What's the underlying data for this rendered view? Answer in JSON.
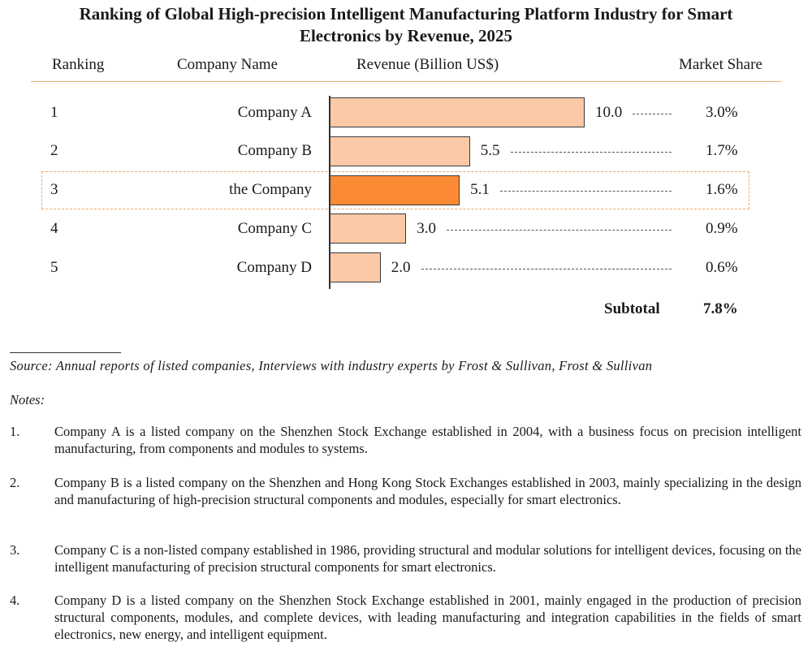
{
  "title_line1": "Ranking of Global High-precision Intelligent Manufacturing Platform Industry for Smart",
  "title_line2": "Electronics by Revenue, 2025",
  "headers": {
    "ranking": "Ranking",
    "company": "Company Name",
    "revenue": "Revenue (Billion US$)",
    "share": "Market Share"
  },
  "chart_data": {
    "type": "bar",
    "orientation": "horizontal",
    "title": "Ranking of Global High-precision Intelligent Manufacturing Platform Industry for Smart Electronics by Revenue, 2025",
    "categories": [
      "Company A",
      "Company B",
      "the Company",
      "Company C",
      "Company D"
    ],
    "ranks": [
      "1",
      "2",
      "3",
      "4",
      "5"
    ],
    "values": [
      10.0,
      5.5,
      5.1,
      3.0,
      2.0
    ],
    "value_labels": [
      "10.0",
      "5.5",
      "5.1",
      "3.0",
      "2.0"
    ],
    "market_share": [
      "3.0%",
      "1.7%",
      "1.6%",
      "0.9%",
      "0.6%"
    ],
    "highlighted_index": 2,
    "xlabel": "Revenue (Billion US$)",
    "xlim": [
      0,
      10.0
    ],
    "colors": {
      "bar": "#fcc9a6",
      "highlight": "#fb8a34",
      "border": "#3a3a3a"
    }
  },
  "subtotal": {
    "label": "Subtotal",
    "value": "7.8%"
  },
  "source": "Source: Annual reports of listed companies, Interviews with industry experts by Frost & Sullivan, Frost & Sullivan",
  "notes_label": "Notes:",
  "notes": [
    {
      "num": "1.",
      "text": "Company A is a listed company on the Shenzhen Stock Exchange established in 2004, with a business focus on precision intelligent manufacturing, from components and modules to systems."
    },
    {
      "num": "2.",
      "text": "Company B is a listed company on the Shenzhen and Hong Kong Stock Exchanges established in 2003, mainly specializing in the design and manufacturing of high-precision structural components and modules, especially for smart electronics."
    },
    {
      "num": "3.",
      "text": "Company C is a non-listed company established in 1986, providing structural and modular solutions for intelligent devices, focusing on the intelligent manufacturing of precision structural components for smart electronics."
    },
    {
      "num": "4.",
      "text": "Company D is a listed company on the Shenzhen Stock Exchange established in 2001, mainly engaged in the production of precision structural components, modules, and complete devices, with leading manufacturing and integration capabilities in the fields of smart electronics, new energy, and intelligent equipment."
    }
  ]
}
